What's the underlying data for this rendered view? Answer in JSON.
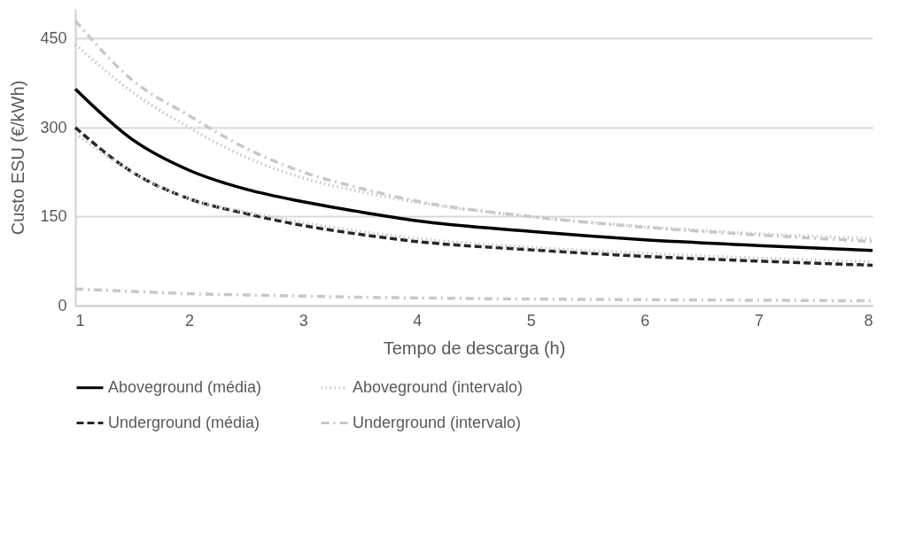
{
  "chart_data": {
    "type": "line",
    "xlabel": "Tempo de descarga (h)",
    "ylabel": "Custo ESU (€/kWh)",
    "x": [
      1,
      1.5,
      2,
      2.5,
      3,
      3.5,
      4,
      5,
      6,
      7,
      8
    ],
    "xlim": [
      1,
      8
    ],
    "xticks": [
      1,
      2,
      3,
      4,
      5,
      6,
      7,
      8
    ],
    "ylim": [
      0,
      500
    ],
    "yticks": [
      0,
      150,
      300,
      450
    ],
    "grid": "y",
    "legend": "bottom",
    "marker": "none",
    "series": [
      {
        "name": "Aboveground (média)",
        "color": "#000000",
        "line_style": "solid",
        "values": [
          365,
          280,
          228,
          196,
          175,
          158,
          143,
          125,
          111,
          101,
          93
        ]
      },
      {
        "name": "Aboveground (intervalo)",
        "color": "#c8c8c8",
        "line_style": "dotted",
        "values": [
          440,
          360,
          300,
          250,
          215,
          192,
          174,
          150,
          133,
          121,
          113
        ]
      },
      {
        "name": "Underground (média)",
        "color": "#262626",
        "line_style": "dashed",
        "values": [
          300,
          225,
          180,
          155,
          135,
          120,
          108,
          94,
          83,
          75,
          68
        ]
      },
      {
        "name": "Underground (intervalo)",
        "color": "#c8c8c8",
        "line_style": "dashdot",
        "values": [
          480,
          380,
          320,
          265,
          225,
          198,
          176,
          150,
          132,
          119,
          108
        ]
      },
      {
        "color": "#c8c8c8",
        "line_style": "dotted",
        "values": [
          290,
          225,
          180,
          158,
          140,
          125,
          113,
          98,
          88,
          80,
          74
        ]
      },
      {
        "color": "#c8c8c8",
        "line_style": "dashdot",
        "values": [
          28,
          24,
          20,
          18,
          16,
          14,
          13,
          11,
          10,
          9,
          8
        ]
      }
    ]
  }
}
